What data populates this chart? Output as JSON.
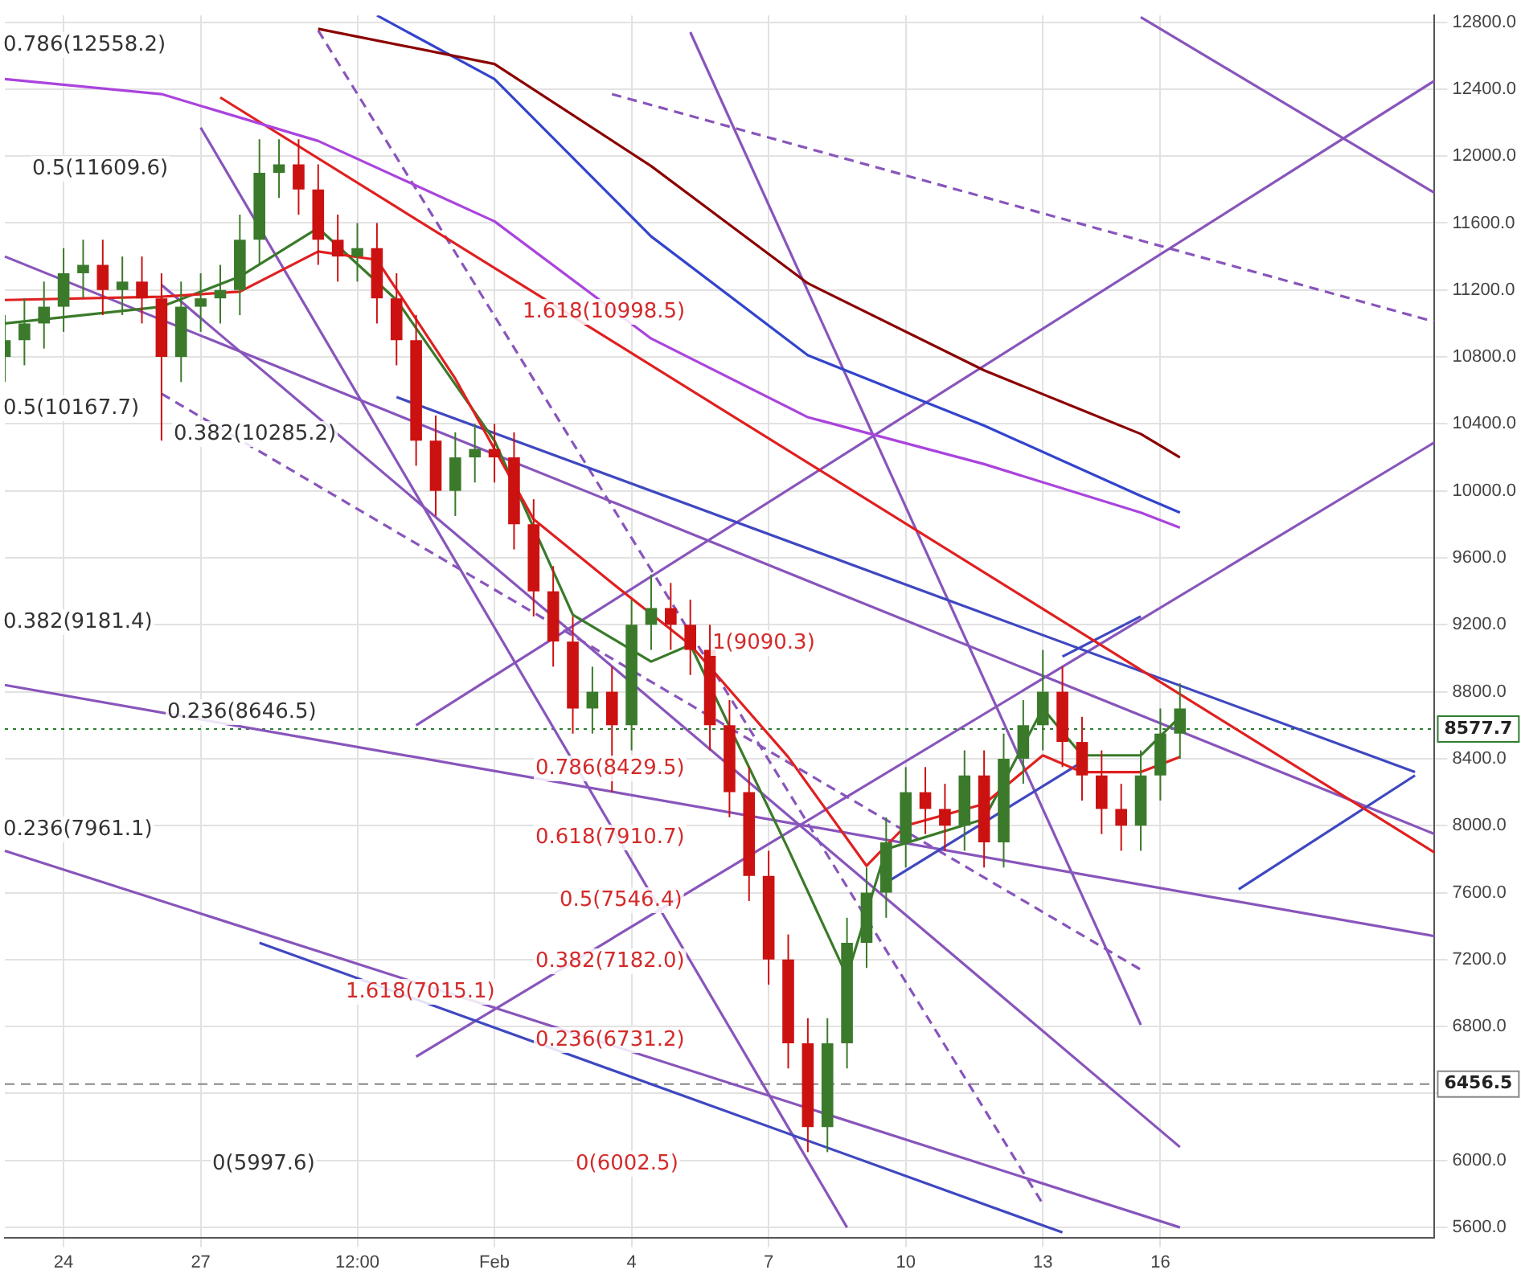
{
  "chart_data": {
    "type": "candlestick",
    "categories": [
      null,
      null,
      null,
      "24",
      null,
      null,
      null,
      null,
      null,
      null,
      "27",
      null,
      null,
      null,
      null,
      null,
      null,
      null,
      "12:00",
      null,
      null,
      null,
      null,
      null,
      null,
      "Feb",
      null,
      null,
      null,
      null,
      null,
      null,
      "4",
      null,
      null,
      null,
      null,
      null,
      null,
      "7",
      null,
      null,
      null,
      null,
      null,
      null,
      "10",
      null,
      null,
      null,
      null,
      null,
      null,
      "13",
      null,
      null,
      null,
      null,
      null,
      "16",
      null,
      null,
      null,
      null,
      null,
      null,
      null,
      null,
      null,
      null,
      null,
      null,
      null,
      null
    ],
    "ohlc": [
      [
        10800,
        11050,
        10650,
        10900
      ],
      [
        10900,
        11150,
        10750,
        11000
      ],
      [
        11000,
        11250,
        10850,
        11100
      ],
      [
        11100,
        11450,
        10950,
        11300
      ],
      [
        11300,
        11500,
        11150,
        11350
      ],
      [
        11350,
        11500,
        11050,
        11200
      ],
      [
        11200,
        11400,
        11050,
        11250
      ],
      [
        11250,
        11400,
        11000,
        11150
      ],
      [
        11150,
        11300,
        10300,
        10800
      ],
      [
        10800,
        11250,
        10650,
        11100
      ],
      [
        11100,
        11300,
        10950,
        11150
      ],
      [
        11150,
        11350,
        11000,
        11200
      ],
      [
        11200,
        11650,
        11050,
        11500
      ],
      [
        11500,
        12100,
        11350,
        11900
      ],
      [
        11900,
        12100,
        11750,
        11950
      ],
      [
        11950,
        12100,
        11650,
        11800
      ],
      [
        11800,
        11950,
        11350,
        11500
      ],
      [
        11500,
        11650,
        11250,
        11400
      ],
      [
        11400,
        11600,
        11250,
        11450
      ],
      [
        11450,
        11600,
        11000,
        11150
      ],
      [
        11150,
        11300,
        10750,
        10900
      ],
      [
        10900,
        11050,
        10150,
        10300
      ],
      [
        10300,
        10450,
        9850,
        10000
      ],
      [
        10000,
        10350,
        9850,
        10200
      ],
      [
        10200,
        10400,
        10050,
        10250
      ],
      [
        10250,
        10400,
        10050,
        10200
      ],
      [
        10200,
        10350,
        9650,
        9800
      ],
      [
        9800,
        9950,
        9250,
        9400
      ],
      [
        9400,
        9550,
        8950,
        9100
      ],
      [
        9100,
        9250,
        8550,
        8700
      ],
      [
        8700,
        8950,
        8550,
        8800
      ],
      [
        8800,
        8950,
        8200,
        8600
      ],
      [
        8600,
        9350,
        8450,
        9200
      ],
      [
        9200,
        9500,
        9050,
        9300
      ],
      [
        9300,
        9450,
        9050,
        9200
      ],
      [
        9200,
        9350,
        8900,
        9050
      ],
      [
        9050,
        9200,
        8450,
        8600
      ],
      [
        8600,
        8750,
        8050,
        8200
      ],
      [
        8200,
        8350,
        7550,
        7700
      ],
      [
        7700,
        7850,
        7050,
        7200
      ],
      [
        7200,
        7350,
        6550,
        6700
      ],
      [
        6700,
        6850,
        6050,
        6200
      ],
      [
        6200,
        6850,
        6050,
        6700
      ],
      [
        6700,
        7450,
        6550,
        7300
      ],
      [
        7300,
        7750,
        7150,
        7600
      ],
      [
        7600,
        8050,
        7450,
        7900
      ],
      [
        7900,
        8350,
        7750,
        8200
      ],
      [
        8200,
        8350,
        7950,
        8100
      ],
      [
        8100,
        8250,
        7850,
        8000
      ],
      [
        8000,
        8450,
        7850,
        8300
      ],
      [
        8300,
        8450,
        7750,
        7900
      ],
      [
        7900,
        8550,
        7750,
        8400
      ],
      [
        8400,
        8750,
        8250,
        8600
      ],
      [
        8600,
        9050,
        8450,
        8800
      ],
      [
        8800,
        8950,
        8350,
        8500
      ],
      [
        8500,
        8650,
        8150,
        8300
      ],
      [
        8300,
        8450,
        7950,
        8100
      ],
      [
        8100,
        8250,
        7850,
        8000
      ],
      [
        8000,
        8450,
        7850,
        8300
      ],
      [
        8300,
        8700,
        8150,
        8550
      ],
      [
        8550,
        8850,
        8400,
        8700
      ],
      null,
      null,
      null,
      null,
      null,
      null,
      null,
      null,
      null,
      null,
      null,
      null,
      null
    ],
    "series": [
      {
        "type": "line",
        "color": "#8b0000",
        "values": [
          null,
          null,
          null,
          null,
          null,
          null,
          null,
          null,
          null,
          null,
          null,
          null,
          null,
          null,
          null,
          null,
          12760,
          null,
          null,
          null,
          null,
          null,
          null,
          null,
          null,
          12550,
          null,
          null,
          null,
          null,
          null,
          null,
          null,
          11940,
          null,
          null,
          null,
          null,
          null,
          null,
          null,
          11240,
          null,
          null,
          null,
          null,
          null,
          null,
          null,
          null,
          10720,
          null,
          null,
          null,
          null,
          null,
          null,
          null,
          10340,
          null,
          10200,
          null,
          null,
          null,
          null,
          null,
          null,
          null,
          null,
          null,
          null,
          null,
          null,
          null
        ]
      },
      {
        "type": "line",
        "color": "#3344cc",
        "values": [
          null,
          null,
          null,
          null,
          null,
          null,
          null,
          null,
          null,
          null,
          null,
          null,
          null,
          null,
          null,
          null,
          null,
          null,
          null,
          12840,
          null,
          null,
          null,
          null,
          null,
          12460,
          null,
          null,
          null,
          null,
          null,
          null,
          null,
          11520,
          null,
          null,
          null,
          null,
          null,
          null,
          null,
          10810,
          null,
          null,
          null,
          null,
          null,
          null,
          null,
          null,
          10390,
          null,
          null,
          null,
          null,
          null,
          null,
          null,
          9970,
          null,
          9870,
          null,
          null,
          null,
          null,
          null,
          null,
          null,
          null,
          null,
          null,
          null,
          null,
          null
        ]
      },
      {
        "type": "line",
        "color": "#aa44dd",
        "values": [
          12460,
          null,
          null,
          null,
          null,
          null,
          null,
          null,
          12370,
          null,
          null,
          null,
          null,
          null,
          null,
          null,
          12090,
          null,
          null,
          null,
          null,
          null,
          null,
          null,
          null,
          11610,
          null,
          null,
          null,
          null,
          null,
          null,
          null,
          10910,
          null,
          null,
          null,
          null,
          null,
          null,
          null,
          10440,
          null,
          null,
          null,
          null,
          null,
          null,
          null,
          null,
          10160,
          null,
          null,
          null,
          null,
          null,
          null,
          null,
          9870,
          null,
          9780,
          null,
          null,
          null,
          null,
          null,
          null,
          null,
          null,
          null,
          null,
          null,
          null,
          null
        ]
      },
      {
        "type": "line",
        "color": "#e02020",
        "values": [
          11140,
          null,
          null,
          null,
          null,
          null,
          null,
          null,
          11160,
          null,
          null,
          null,
          11190,
          null,
          null,
          null,
          11430,
          null,
          null,
          11380,
          null,
          null,
          null,
          10670,
          null,
          null,
          null,
          9830,
          null,
          null,
          null,
          9450,
          null,
          null,
          null,
          9080,
          null,
          null,
          null,
          null,
          8410,
          null,
          null,
          null,
          7760,
          null,
          8000,
          null,
          null,
          null,
          8130,
          null,
          null,
          8420,
          null,
          8320,
          null,
          null,
          8320,
          null,
          8410,
          null,
          null,
          null,
          null,
          null,
          null,
          null,
          null,
          null,
          null,
          null,
          null,
          null
        ]
      },
      {
        "type": "line",
        "color": "#3a7a2a",
        "values": [
          11000,
          null,
          null,
          null,
          null,
          null,
          null,
          null,
          11100,
          null,
          null,
          null,
          11280,
          null,
          null,
          null,
          11570,
          null,
          null,
          null,
          11140,
          null,
          null,
          null,
          null,
          10300,
          null,
          null,
          null,
          9260,
          null,
          null,
          null,
          8980,
          null,
          9080,
          null,
          null,
          null,
          null,
          7860,
          null,
          null,
          7100,
          null,
          7860,
          null,
          null,
          null,
          null,
          8040,
          null,
          null,
          8700,
          null,
          8420,
          null,
          null,
          8420,
          null,
          8650,
          null,
          null,
          null,
          null,
          null,
          null,
          null,
          null,
          null,
          null,
          null,
          null,
          null
        ]
      },
      {
        "type": "line",
        "color": "#e02020",
        "values": [
          null,
          null,
          null,
          null,
          null,
          null,
          null,
          null,
          null,
          null,
          null,
          12350,
          null,
          null,
          null,
          null,
          null,
          null,
          null,
          null,
          null,
          null,
          null,
          null,
          null,
          null,
          null,
          null,
          null,
          null,
          null,
          null,
          null,
          null,
          null,
          null,
          null,
          null,
          null,
          null,
          null,
          null,
          null,
          null,
          null,
          null,
          null,
          null,
          null,
          null,
          null,
          null,
          null,
          null,
          null,
          null,
          null,
          null,
          null,
          null,
          null,
          null,
          null,
          null,
          null,
          null,
          null,
          null,
          null,
          null,
          null,
          null,
          null,
          7840
        ]
      },
      {
        "type": "line",
        "color": "#3f48c0",
        "values": [
          null,
          null,
          null,
          null,
          null,
          null,
          null,
          null,
          null,
          null,
          null,
          null,
          null,
          null,
          null,
          null,
          null,
          null,
          null,
          null,
          10560,
          null,
          null,
          null,
          null,
          null,
          null,
          null,
          null,
          null,
          null,
          null,
          null,
          null,
          null,
          null,
          null,
          null,
          null,
          null,
          null,
          null,
          null,
          null,
          null,
          null,
          null,
          null,
          null,
          null,
          null,
          null,
          null,
          null,
          null,
          null,
          null,
          null,
          null,
          null,
          null,
          null,
          null,
          null,
          null,
          null,
          null,
          null,
          null,
          null,
          null,
          null,
          8320,
          null
        ]
      },
      {
        "type": "line",
        "color": "#3f48c0",
        "values": [
          null,
          null,
          null,
          null,
          null,
          null,
          null,
          null,
          null,
          null,
          null,
          null,
          null,
          7300,
          null,
          null,
          null,
          null,
          null,
          null,
          null,
          null,
          null,
          null,
          null,
          null,
          null,
          null,
          null,
          null,
          null,
          null,
          null,
          null,
          null,
          null,
          null,
          null,
          null,
          null,
          null,
          null,
          null,
          null,
          null,
          null,
          null,
          null,
          null,
          null,
          null,
          null,
          null,
          null,
          5570,
          null,
          null,
          null,
          null,
          null,
          null,
          null,
          null,
          null,
          null,
          null,
          null,
          null,
          null,
          null,
          null,
          null,
          null,
          null
        ]
      },
      {
        "type": "line",
        "color": "#3f48c0",
        "values": [
          null,
          null,
          null,
          null,
          null,
          null,
          null,
          null,
          null,
          null,
          null,
          null,
          null,
          null,
          null,
          null,
          null,
          null,
          null,
          null,
          null,
          null,
          null,
          null,
          null,
          null,
          null,
          null,
          null,
          null,
          null,
          null,
          null,
          null,
          null,
          null,
          null,
          null,
          null,
          null,
          null,
          null,
          null,
          null,
          null,
          null,
          null,
          null,
          null,
          null,
          null,
          null,
          null,
          null,
          null,
          null,
          null,
          null,
          null,
          null,
          null,
          null,
          null,
          7620,
          null,
          null,
          null,
          null,
          null,
          null,
          null,
          null,
          8300,
          null
        ]
      },
      {
        "type": "line",
        "color": "#3f48c0",
        "values": [
          null,
          null,
          null,
          null,
          null,
          null,
          null,
          null,
          null,
          null,
          null,
          null,
          null,
          null,
          null,
          null,
          null,
          null,
          null,
          null,
          null,
          null,
          null,
          null,
          null,
          null,
          null,
          null,
          null,
          null,
          null,
          null,
          null,
          null,
          null,
          null,
          null,
          null,
          null,
          null,
          null,
          null,
          null,
          null,
          null,
          null,
          null,
          null,
          null,
          null,
          null,
          null,
          null,
          null,
          9010,
          null,
          null,
          null,
          9250,
          null,
          null,
          null,
          null,
          null,
          null,
          null,
          null,
          null,
          null,
          null,
          null,
          null,
          null,
          null
        ]
      },
      {
        "type": "line",
        "color": "#3f48c0",
        "values": [
          null,
          null,
          null,
          null,
          null,
          null,
          null,
          null,
          null,
          null,
          null,
          null,
          null,
          null,
          null,
          null,
          null,
          null,
          null,
          null,
          null,
          null,
          null,
          null,
          null,
          null,
          null,
          null,
          null,
          null,
          null,
          null,
          null,
          null,
          null,
          null,
          null,
          null,
          null,
          null,
          null,
          null,
          null,
          null,
          null,
          7660,
          null,
          null,
          null,
          null,
          null,
          null,
          null,
          null,
          null,
          8380,
          null,
          null,
          null,
          null,
          null,
          null,
          null,
          null,
          null,
          null,
          null,
          null,
          null,
          null,
          null,
          null,
          null,
          null
        ]
      },
      {
        "type": "line",
        "color": "#8855bb",
        "values": [
          11400,
          null,
          null,
          null,
          null,
          null,
          null,
          null,
          null,
          null,
          null,
          null,
          null,
          null,
          null,
          null,
          null,
          null,
          null,
          null,
          null,
          null,
          null,
          null,
          null,
          null,
          null,
          null,
          null,
          null,
          null,
          null,
          null,
          null,
          null,
          null,
          null,
          null,
          null,
          null,
          null,
          null,
          null,
          null,
          null,
          null,
          null,
          null,
          null,
          null,
          null,
          null,
          null,
          null,
          null,
          null,
          null,
          null,
          null,
          null,
          null,
          null,
          null,
          null,
          null,
          null,
          null,
          null,
          null,
          null,
          null,
          null,
          null,
          7950
        ]
      },
      {
        "type": "line",
        "color": "#8855bb",
        "values": [
          8840,
          null,
          null,
          null,
          null,
          null,
          null,
          null,
          null,
          null,
          null,
          null,
          null,
          null,
          null,
          null,
          null,
          null,
          null,
          null,
          null,
          null,
          null,
          null,
          null,
          null,
          null,
          null,
          null,
          null,
          null,
          null,
          null,
          null,
          null,
          null,
          null,
          null,
          null,
          null,
          null,
          null,
          null,
          null,
          null,
          null,
          null,
          null,
          null,
          null,
          null,
          null,
          null,
          null,
          null,
          null,
          null,
          null,
          null,
          null,
          null,
          null,
          null,
          null,
          null,
          null,
          null,
          null,
          null,
          null,
          null,
          null,
          null,
          7340
        ]
      },
      {
        "type": "line",
        "color": "#8855bb",
        "values": [
          7850,
          null,
          null,
          null,
          null,
          null,
          null,
          null,
          null,
          null,
          null,
          null,
          null,
          null,
          null,
          null,
          null,
          null,
          null,
          null,
          null,
          null,
          null,
          null,
          null,
          null,
          null,
          null,
          null,
          null,
          null,
          null,
          null,
          null,
          null,
          null,
          null,
          null,
          null,
          null,
          null,
          null,
          null,
          null,
          null,
          null,
          null,
          null,
          null,
          null,
          null,
          null,
          null,
          null,
          null,
          null,
          null,
          null,
          null,
          null,
          5600,
          null,
          null,
          null,
          null,
          null,
          null,
          null,
          null,
          null,
          null,
          null,
          null,
          null
        ]
      },
      {
        "type": "line",
        "color": "#8855bb",
        "values": [
          null,
          null,
          null,
          null,
          null,
          null,
          null,
          null,
          null,
          null,
          null,
          null,
          null,
          null,
          null,
          null,
          null,
          null,
          null,
          null,
          null,
          6620,
          null,
          null,
          null,
          null,
          null,
          null,
          null,
          null,
          null,
          null,
          null,
          null,
          null,
          null,
          null,
          null,
          null,
          null,
          null,
          null,
          null,
          null,
          null,
          null,
          null,
          null,
          null,
          null,
          null,
          null,
          null,
          null,
          null,
          null,
          null,
          null,
          null,
          null,
          null,
          null,
          null,
          null,
          null,
          null,
          null,
          null,
          null,
          null,
          null,
          null,
          null,
          10290
        ]
      },
      {
        "type": "line",
        "color": "#8855bb",
        "values": [
          null,
          null,
          null,
          null,
          null,
          null,
          null,
          null,
          null,
          null,
          null,
          null,
          null,
          null,
          null,
          null,
          null,
          null,
          null,
          null,
          null,
          8600,
          null,
          null,
          null,
          null,
          null,
          null,
          null,
          null,
          null,
          null,
          null,
          null,
          null,
          null,
          null,
          null,
          null,
          null,
          null,
          null,
          null,
          null,
          null,
          null,
          null,
          null,
          null,
          null,
          null,
          null,
          null,
          null,
          null,
          null,
          null,
          null,
          null,
          null,
          null,
          null,
          null,
          null,
          null,
          null,
          null,
          null,
          null,
          null,
          null,
          null,
          null,
          12450
        ]
      },
      {
        "type": "line",
        "color": "#8855bb",
        "values": [
          null,
          null,
          null,
          null,
          null,
          null,
          null,
          null,
          null,
          null,
          12170,
          null,
          null,
          null,
          null,
          null,
          null,
          null,
          null,
          null,
          null,
          null,
          null,
          null,
          null,
          null,
          null,
          null,
          null,
          null,
          null,
          null,
          null,
          null,
          null,
          null,
          null,
          null,
          null,
          null,
          null,
          null,
          null,
          5600,
          null,
          null,
          null,
          null,
          null,
          null,
          null,
          null,
          null,
          null,
          null,
          null,
          null,
          null,
          null,
          null,
          null,
          null,
          null,
          null,
          null,
          null,
          null,
          null,
          null,
          null,
          null,
          null,
          null,
          null
        ]
      },
      {
        "type": "line",
        "color": "#8855bb",
        "values": [
          null,
          null,
          null,
          null,
          null,
          null,
          null,
          null,
          null,
          null,
          null,
          null,
          null,
          null,
          null,
          null,
          null,
          null,
          null,
          null,
          null,
          null,
          null,
          null,
          null,
          null,
          null,
          null,
          null,
          null,
          null,
          null,
          null,
          null,
          null,
          12740,
          null,
          null,
          null,
          null,
          null,
          null,
          null,
          null,
          null,
          null,
          null,
          null,
          null,
          null,
          null,
          null,
          null,
          null,
          null,
          null,
          null,
          null,
          6810,
          null,
          null,
          null,
          null,
          null,
          null,
          null,
          null,
          null,
          null,
          null,
          null,
          null,
          null,
          null
        ]
      },
      {
        "type": "line",
        "color": "#8855bb",
        "values": [
          null,
          null,
          null,
          null,
          null,
          null,
          null,
          null,
          11230,
          null,
          null,
          null,
          null,
          null,
          null,
          null,
          null,
          null,
          null,
          null,
          null,
          null,
          null,
          null,
          null,
          null,
          null,
          null,
          null,
          null,
          null,
          null,
          null,
          null,
          null,
          null,
          null,
          null,
          null,
          null,
          null,
          null,
          null,
          null,
          null,
          null,
          null,
          null,
          null,
          null,
          null,
          null,
          null,
          null,
          null,
          null,
          null,
          null,
          null,
          null,
          6080,
          null,
          null,
          null,
          null,
          null,
          null,
          null,
          null,
          null,
          null,
          null,
          null,
          null
        ]
      },
      {
        "type": "line",
        "color": "#8855bb",
        "values": [
          null,
          null,
          null,
          null,
          null,
          null,
          null,
          null,
          null,
          null,
          null,
          null,
          null,
          null,
          null,
          null,
          null,
          null,
          null,
          null,
          null,
          null,
          null,
          null,
          null,
          null,
          null,
          null,
          null,
          null,
          null,
          null,
          null,
          null,
          null,
          null,
          null,
          null,
          null,
          null,
          null,
          null,
          null,
          null,
          null,
          null,
          null,
          null,
          null,
          null,
          null,
          null,
          null,
          null,
          null,
          null,
          null,
          null,
          12830,
          null,
          null,
          null,
          null,
          null,
          null,
          null,
          null,
          null,
          null,
          null,
          null,
          null,
          null,
          11780
        ]
      },
      {
        "type": "line",
        "color": "#8855bb",
        "line_style": "dashed",
        "values": [
          null,
          null,
          null,
          null,
          null,
          null,
          null,
          null,
          null,
          null,
          null,
          null,
          null,
          null,
          null,
          null,
          null,
          null,
          null,
          null,
          null,
          null,
          null,
          null,
          null,
          null,
          null,
          null,
          null,
          null,
          null,
          12370,
          null,
          null,
          null,
          null,
          null,
          null,
          null,
          null,
          null,
          null,
          null,
          null,
          null,
          null,
          null,
          null,
          null,
          null,
          null,
          null,
          null,
          null,
          null,
          null,
          null,
          null,
          null,
          null,
          null,
          null,
          null,
          null,
          null,
          null,
          null,
          null,
          null,
          null,
          null,
          null,
          null,
          11010
        ]
      },
      {
        "type": "line",
        "color": "#8855bb",
        "line_style": "dashed",
        "values": [
          null,
          null,
          null,
          null,
          null,
          null,
          null,
          null,
          null,
          null,
          null,
          null,
          null,
          null,
          null,
          null,
          12750,
          null,
          null,
          null,
          null,
          null,
          null,
          null,
          null,
          null,
          null,
          null,
          null,
          null,
          null,
          null,
          null,
          null,
          null,
          null,
          null,
          null,
          null,
          null,
          null,
          null,
          null,
          null,
          null,
          null,
          null,
          null,
          null,
          null,
          null,
          null,
          null,
          5740,
          null,
          null,
          null,
          null,
          null,
          null,
          null,
          null,
          null,
          null,
          null,
          null,
          null,
          null,
          null,
          null,
          null,
          null,
          null,
          null
        ]
      },
      {
        "type": "line",
        "color": "#8855bb",
        "line_style": "dashed",
        "values": [
          null,
          null,
          null,
          null,
          null,
          null,
          null,
          null,
          10580,
          null,
          null,
          null,
          null,
          null,
          null,
          null,
          null,
          null,
          null,
          null,
          null,
          null,
          null,
          null,
          null,
          null,
          null,
          null,
          null,
          null,
          null,
          null,
          null,
          null,
          null,
          null,
          null,
          null,
          null,
          null,
          null,
          null,
          null,
          null,
          null,
          null,
          null,
          null,
          null,
          null,
          null,
          null,
          null,
          null,
          null,
          null,
          null,
          null,
          7140,
          null,
          null,
          null,
          null,
          null,
          null,
          null,
          null,
          null,
          null,
          null,
          null,
          null,
          null,
          null
        ]
      }
    ],
    "ref_lines": [
      {
        "axis": "y",
        "value": 8577.7,
        "label": "8577.7",
        "color": "#2e7d32",
        "line_style": "dotted"
      },
      {
        "axis": "y",
        "value": 6456.5,
        "label": "6456.5",
        "color": "#888888",
        "line_style": "dashed"
      }
    ],
    "annotations": [
      "0.786(12558.2)",
      "0.5(11609.6)",
      "0.382(10285.2)",
      "0.5(10167.7)",
      "0.382(9181.4)",
      "0.236(8646.5)",
      "0.236(7961.1)",
      "0(5997.6)",
      "1.618(10998.5)",
      "1(9090.3)",
      "0.786(8429.5)",
      "0.618(7910.7)",
      "0.5(7546.4)",
      "0.382(7182.0)",
      "1.618(7015.1)",
      "0.236(6731.2)",
      "0(6002.5)"
    ],
    "ylim": [
      5540,
      12840
    ],
    "yticks": [
      {
        "value": 5600,
        "label": "5600.0"
      },
      {
        "value": 6000,
        "label": "6000.0"
      },
      {
        "value": 6400,
        "label": null
      },
      {
        "value": 6800,
        "label": "6800.0"
      },
      {
        "value": 7200,
        "label": "7200.0"
      },
      {
        "value": 7600,
        "label": "7600.0"
      },
      {
        "value": 8000,
        "label": "8000.0"
      },
      {
        "value": 8400,
        "label": "8400.0"
      },
      {
        "value": 8800,
        "label": "8800.0"
      },
      {
        "value": 9200,
        "label": "9200.0"
      },
      {
        "value": 9600,
        "label": "9600.0"
      },
      {
        "value": 10000,
        "label": "10000.0"
      },
      {
        "value": 10400,
        "label": "10400.0"
      },
      {
        "value": 10800,
        "label": "10800.0"
      },
      {
        "value": 11200,
        "label": "11200.0"
      },
      {
        "value": 11600,
        "label": "11600.0"
      },
      {
        "value": 12000,
        "label": "12000.0"
      },
      {
        "value": 12400,
        "label": "12400.0"
      },
      {
        "value": 12800,
        "label": "12800.0"
      }
    ],
    "grid": true,
    "legend": false
  }
}
